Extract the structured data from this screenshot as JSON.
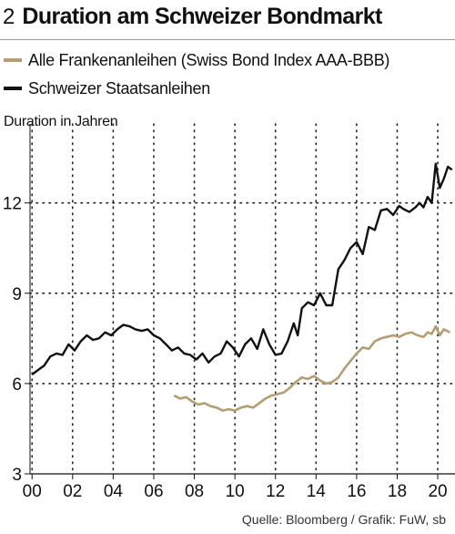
{
  "header": {
    "number": "2",
    "title": "Duration am Schweizer Bondmarkt"
  },
  "legend": [
    {
      "label": "Alle Frankenanleihen (Swiss Bond Index AAA-BBB)",
      "color": "#b59e73"
    },
    {
      "label": "Schweizer Staatsanleihen",
      "color": "#111111"
    }
  ],
  "source": "Quelle: Bloomberg / Grafik: FuW, sb",
  "chart_data": {
    "type": "line",
    "title": "Duration am Schweizer Bondmarkt",
    "ylabel": "Duration in Jahren",
    "xlabel": "",
    "x_tick_labels": [
      "00",
      "02",
      "04",
      "06",
      "08",
      "10",
      "12",
      "14",
      "16",
      "18",
      "20"
    ],
    "x_ticks": [
      2000,
      2002,
      2004,
      2006,
      2008,
      2010,
      2012,
      2014,
      2016,
      2018,
      2020
    ],
    "y_ticks": [
      3,
      6,
      9,
      12
    ],
    "xlim": [
      1999.9,
      2020.85
    ],
    "ylim": [
      3,
      14.2
    ],
    "grid": "vertical dotted",
    "legend_position": "top",
    "series": [
      {
        "name": "Alle Frankenanleihen (Swiss Bond Index AAA-BBB)",
        "color": "#b59e73",
        "x": [
          2007.0,
          2007.3,
          2007.6,
          2007.9,
          2008.2,
          2008.5,
          2008.8,
          2009.1,
          2009.4,
          2009.7,
          2010.0,
          2010.3,
          2010.6,
          2010.9,
          2011.2,
          2011.5,
          2011.8,
          2012.1,
          2012.4,
          2012.7,
          2013.0,
          2013.3,
          2013.6,
          2013.9,
          2014.2,
          2014.5,
          2014.8,
          2015.1,
          2015.4,
          2015.7,
          2016.0,
          2016.3,
          2016.6,
          2016.9,
          2017.2,
          2017.5,
          2017.8,
          2018.1,
          2018.4,
          2018.7,
          2019.0,
          2019.3,
          2019.5,
          2019.7,
          2019.9,
          2020.1,
          2020.3,
          2020.6
        ],
        "values": [
          5.6,
          5.5,
          5.55,
          5.4,
          5.3,
          5.35,
          5.25,
          5.2,
          5.1,
          5.15,
          5.1,
          5.2,
          5.25,
          5.2,
          5.35,
          5.5,
          5.6,
          5.65,
          5.7,
          5.85,
          6.05,
          6.2,
          6.15,
          6.25,
          6.1,
          6.0,
          6.05,
          6.2,
          6.5,
          6.75,
          7.0,
          7.2,
          7.15,
          7.4,
          7.5,
          7.55,
          7.6,
          7.55,
          7.65,
          7.7,
          7.6,
          7.55,
          7.7,
          7.65,
          7.9,
          7.6,
          7.8,
          7.7
        ]
      },
      {
        "name": "Schweizer Staatsanleihen",
        "color": "#111111",
        "x": [
          2000.0,
          2000.3,
          2000.6,
          2000.9,
          2001.2,
          2001.5,
          2001.8,
          2002.1,
          2002.4,
          2002.7,
          2003.0,
          2003.3,
          2003.6,
          2003.9,
          2004.2,
          2004.5,
          2004.8,
          2005.1,
          2005.4,
          2005.7,
          2006.0,
          2006.3,
          2006.6,
          2006.9,
          2007.2,
          2007.5,
          2007.8,
          2008.1,
          2008.4,
          2008.7,
          2009.0,
          2009.3,
          2009.6,
          2009.9,
          2010.2,
          2010.5,
          2010.8,
          2011.1,
          2011.4,
          2011.7,
          2012.0,
          2012.3,
          2012.6,
          2012.9,
          2013.1,
          2013.3,
          2013.6,
          2013.9,
          2014.2,
          2014.5,
          2014.8,
          2015.1,
          2015.4,
          2015.7,
          2016.0,
          2016.3,
          2016.6,
          2016.9,
          2017.2,
          2017.5,
          2017.8,
          2018.1,
          2018.3,
          2018.6,
          2018.9,
          2019.1,
          2019.3,
          2019.5,
          2019.7,
          2019.9,
          2020.1,
          2020.3,
          2020.5,
          2020.7
        ],
        "values": [
          6.3,
          6.45,
          6.6,
          6.9,
          7.0,
          6.95,
          7.3,
          7.1,
          7.4,
          7.6,
          7.45,
          7.5,
          7.7,
          7.6,
          7.8,
          7.95,
          7.9,
          7.8,
          7.75,
          7.8,
          7.6,
          7.5,
          7.3,
          7.1,
          7.2,
          7.0,
          6.95,
          6.8,
          7.0,
          6.7,
          6.9,
          7.0,
          7.4,
          7.2,
          6.9,
          7.3,
          7.5,
          7.15,
          7.8,
          7.3,
          6.95,
          7.0,
          7.4,
          8.0,
          7.6,
          8.5,
          8.7,
          8.6,
          9.0,
          8.6,
          8.6,
          9.8,
          10.1,
          10.5,
          10.7,
          10.3,
          11.2,
          11.1,
          11.75,
          11.8,
          11.6,
          11.9,
          11.8,
          11.7,
          11.85,
          12.0,
          11.85,
          12.2,
          12.0,
          13.3,
          12.5,
          12.8,
          13.2,
          13.1
        ]
      }
    ]
  }
}
